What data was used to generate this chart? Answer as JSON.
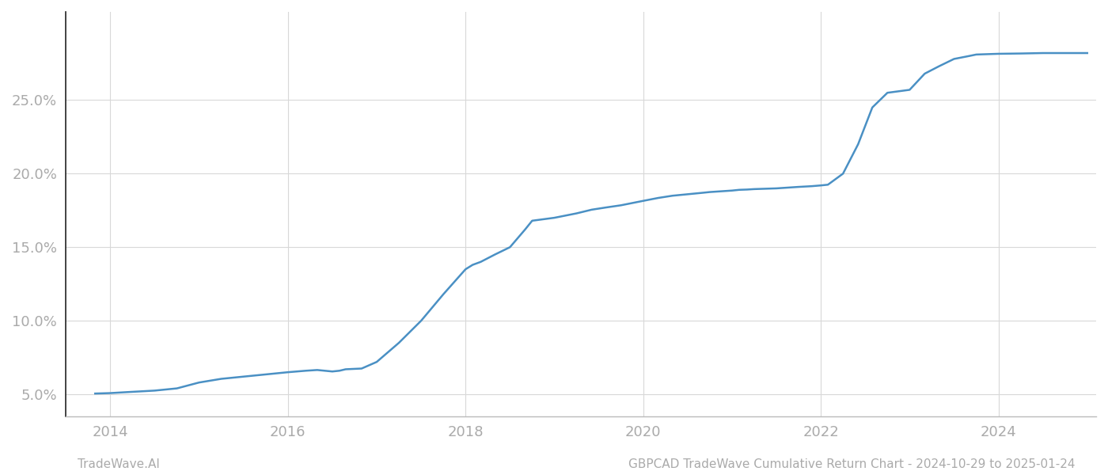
{
  "x_values": [
    2013.83,
    2014.0,
    2014.2,
    2014.5,
    2014.75,
    2015.0,
    2015.25,
    2015.5,
    2015.75,
    2016.0,
    2016.2,
    2016.33,
    2016.5,
    2016.58,
    2016.65,
    2016.83,
    2017.0,
    2017.25,
    2017.5,
    2017.75,
    2018.0,
    2018.08,
    2018.17,
    2018.33,
    2018.5,
    2018.67,
    2018.75,
    2019.0,
    2019.25,
    2019.42,
    2019.58,
    2019.75,
    2020.0,
    2020.17,
    2020.33,
    2020.5,
    2020.67,
    2020.75,
    2021.0,
    2021.08,
    2021.17,
    2021.25,
    2021.5,
    2021.75,
    2021.9,
    2022.0,
    2022.08,
    2022.25,
    2022.42,
    2022.58,
    2022.75,
    2023.0,
    2023.17,
    2023.33,
    2023.5,
    2023.67,
    2023.75,
    2024.0,
    2024.25,
    2024.5,
    2024.75,
    2025.0
  ],
  "y_values": [
    5.05,
    5.08,
    5.15,
    5.25,
    5.4,
    5.8,
    6.05,
    6.2,
    6.35,
    6.5,
    6.6,
    6.65,
    6.55,
    6.6,
    6.7,
    6.75,
    7.2,
    8.5,
    10.0,
    11.8,
    13.5,
    13.8,
    14.0,
    14.5,
    15.0,
    16.2,
    16.8,
    17.0,
    17.3,
    17.55,
    17.7,
    17.85,
    18.15,
    18.35,
    18.5,
    18.6,
    18.7,
    18.75,
    18.85,
    18.9,
    18.92,
    18.95,
    19.0,
    19.1,
    19.15,
    19.2,
    19.25,
    20.0,
    22.0,
    24.5,
    25.5,
    25.7,
    26.8,
    27.3,
    27.8,
    28.0,
    28.1,
    28.15,
    28.17,
    28.2,
    28.2,
    28.2
  ],
  "line_color": "#4a90c4",
  "line_width": 1.8,
  "background_color": "#ffffff",
  "grid_color": "#d8d8d8",
  "xlim": [
    2013.5,
    2025.1
  ],
  "ylim": [
    3.5,
    31.0
  ],
  "xticks": [
    2014,
    2016,
    2018,
    2020,
    2022,
    2024
  ],
  "yticks": [
    5.0,
    10.0,
    15.0,
    20.0,
    25.0
  ],
  "tick_label_color": "#aaaaaa",
  "footer_left": "TradeWave.AI",
  "footer_right": "GBPCAD TradeWave Cumulative Return Chart - 2024-10-29 to 2025-01-24",
  "footer_fontsize": 11,
  "tick_fontsize": 13
}
